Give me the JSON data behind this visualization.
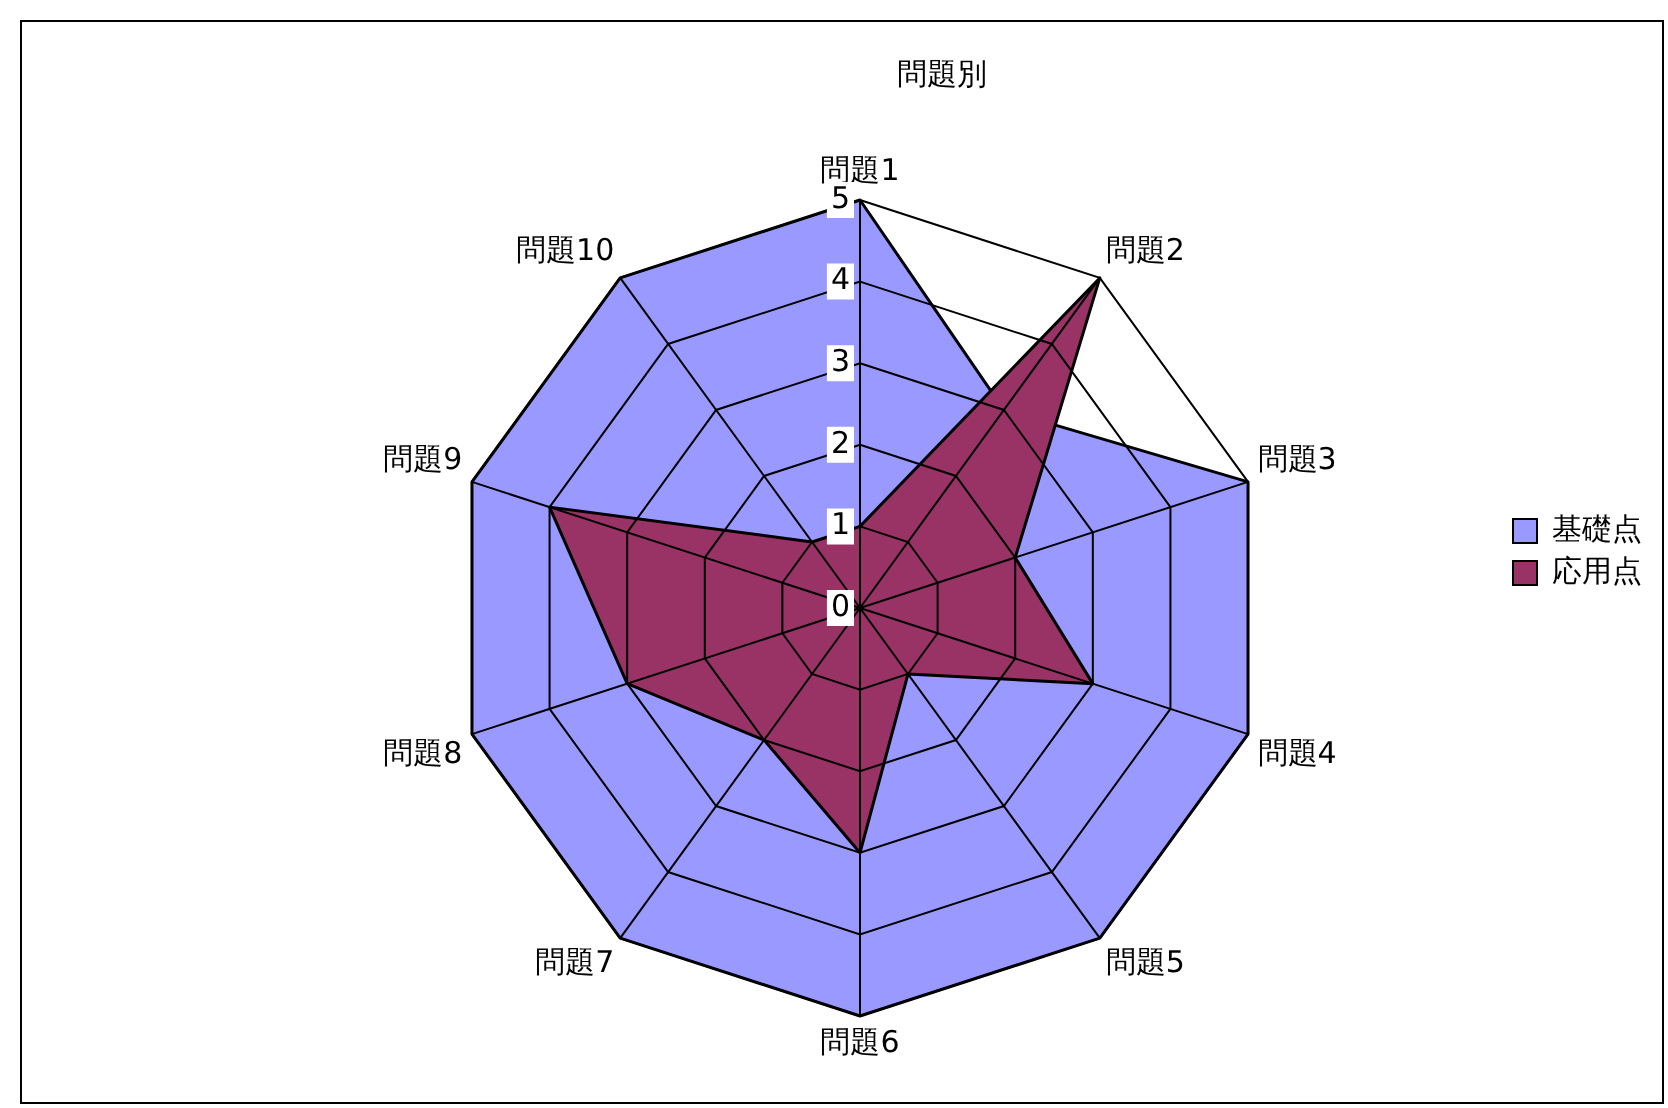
{
  "chart_data": {
    "type": "radar",
    "title": "問題別",
    "categories": [
      "問題1",
      "問題2",
      "問題3",
      "問題4",
      "問題5",
      "問題6",
      "問題7",
      "問題8",
      "問題9",
      "問題10"
    ],
    "series": [
      {
        "name": "基礎点",
        "color": "#9999ff",
        "values": [
          5,
          3,
          5,
          5,
          5,
          5,
          5,
          5,
          5,
          5
        ]
      },
      {
        "name": "応用点",
        "color": "#993366",
        "values": [
          1,
          5,
          2,
          3,
          1,
          3,
          2,
          3,
          4,
          1
        ]
      }
    ],
    "ylim": [
      0,
      5
    ],
    "yticks": [
      0,
      1,
      2,
      3,
      4,
      5
    ],
    "grid": true,
    "legend": "right"
  }
}
